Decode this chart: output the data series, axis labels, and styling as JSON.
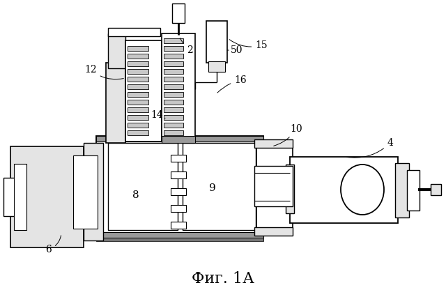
{
  "title": "Фиг. 1А",
  "title_fontsize": 16,
  "bg_color": "#ffffff"
}
